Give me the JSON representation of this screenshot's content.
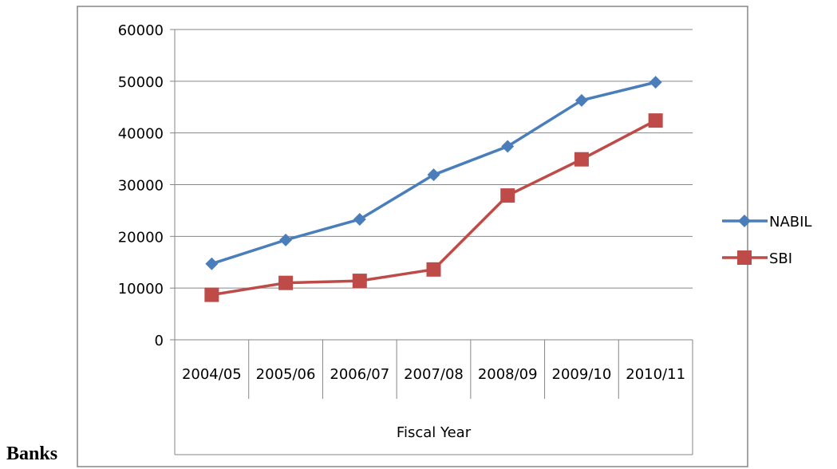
{
  "page_label": "Banks",
  "chart_data": {
    "type": "line",
    "categories": [
      "2004/05",
      "2005/06",
      "2006/07",
      "2007/08",
      "2008/09",
      "2009/10",
      "2010/11"
    ],
    "series": [
      {
        "name": "NABIL",
        "values": [
          14700,
          19300,
          23300,
          31900,
          37400,
          46300,
          49800
        ],
        "color": "#4a7ebb",
        "marker": "diamond"
      },
      {
        "name": "SBI",
        "values": [
          8700,
          11000,
          11400,
          13600,
          27900,
          34900,
          42400
        ],
        "color": "#be4b48",
        "marker": "square"
      }
    ],
    "xlabel": "Fiscal Year",
    "ylabel": "",
    "ylim": [
      0,
      60000
    ],
    "yticks": [
      0,
      10000,
      20000,
      30000,
      40000,
      50000,
      60000
    ],
    "grid": true,
    "legend": "right"
  }
}
